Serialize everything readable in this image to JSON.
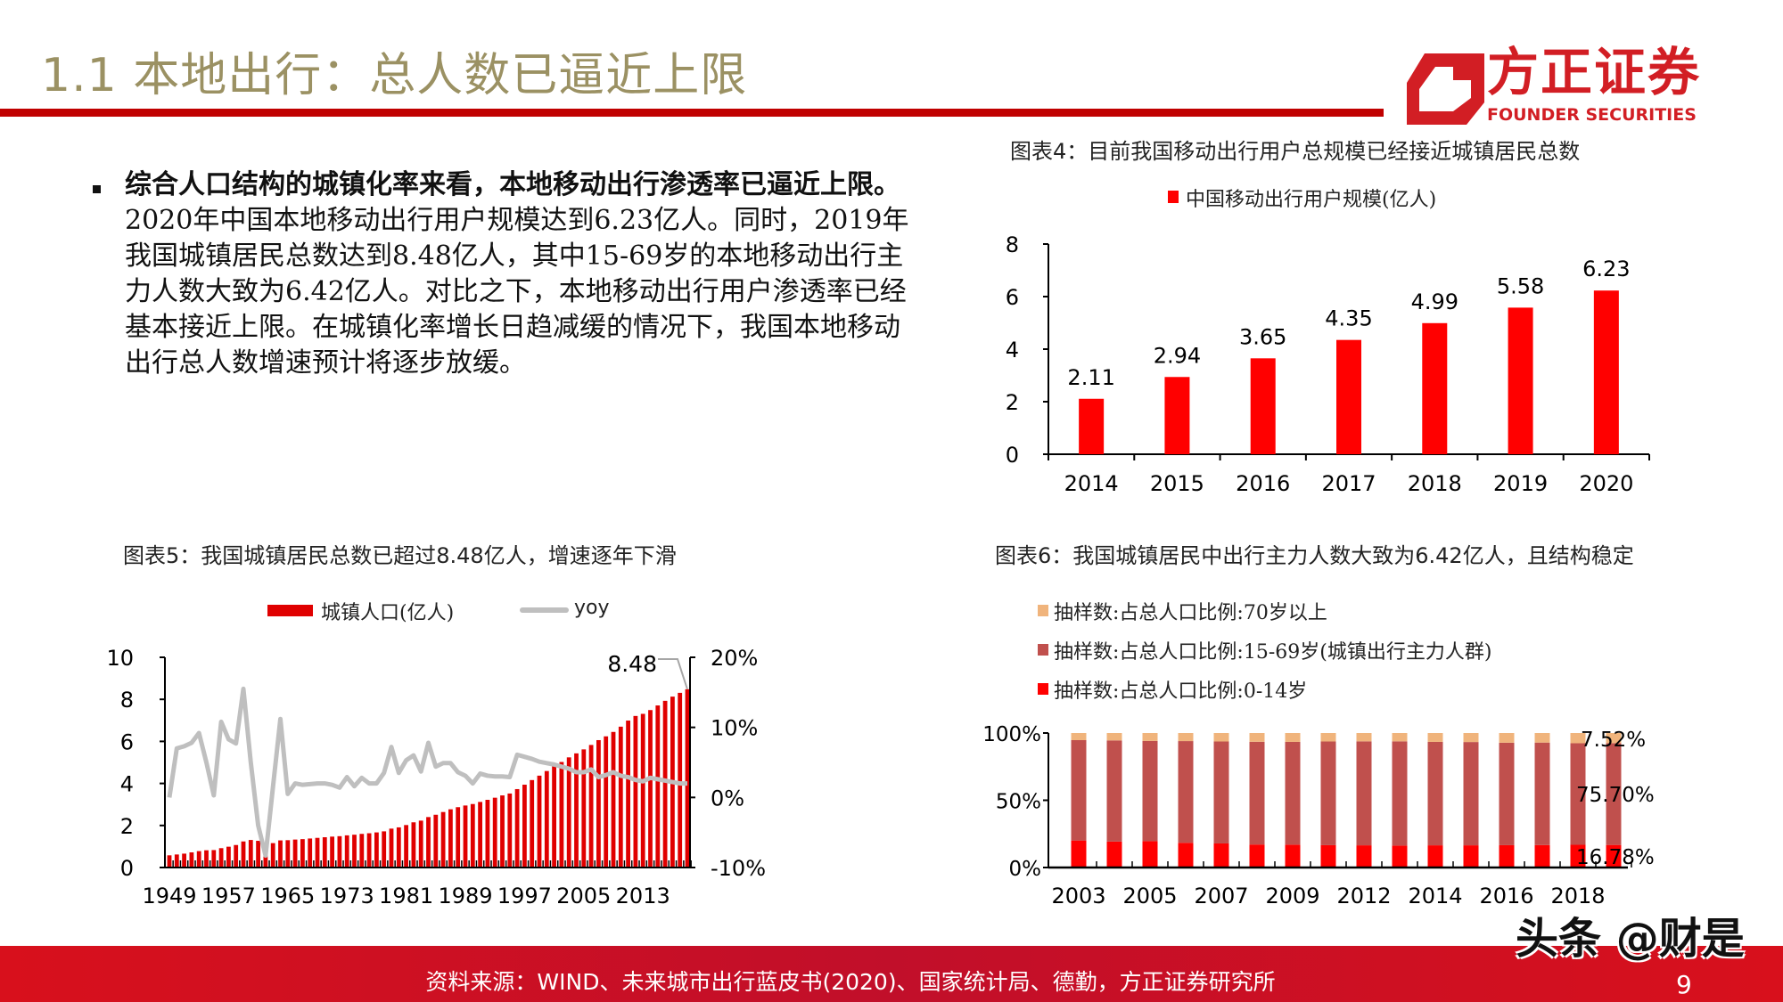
{
  "header": {
    "title": "1.1 本地出行：总人数已逼近上限",
    "logo_cn": "方正证券",
    "logo_en": "FOUNDER SECURITIES"
  },
  "bullet": {
    "bold": "综合人口结构的城镇化率来看，本地移动出行渗透率已逼近上限。",
    "text": "2020年中国本地移动出行用户规模达到6.23亿人。同时，2019年我国城镇居民总数达到8.48亿人，其中15-69岁的本地移动出行主力人数大致为6.42亿人。对比之下，本地移动出行用户渗透率已经基本接近上限。在城镇化率增长日趋减缓的情况下，我国本地移动出行总人数增速预计将逐步放缓。"
  },
  "colors": {
    "title": "#9b9163",
    "accent": "#c00000",
    "bar_red": "#ff0000",
    "yoy_gray": "#bfbfbf",
    "mid": "#c0504d",
    "old": "#f0b47c"
  },
  "chart_data": [
    {
      "type": "bar",
      "title": "图表4：目前我国移动出行用户总规模已经接近城镇居民总数",
      "series": [
        {
          "name": "中国移动出行用户规模(亿人)",
          "values": [
            2.11,
            2.94,
            3.65,
            4.35,
            4.99,
            5.58,
            6.23
          ]
        }
      ],
      "data_labels": [
        "2.11",
        "2.94",
        "3.65",
        "4.35",
        "4.99",
        "5.58",
        "6.23"
      ],
      "categories": [
        "2014",
        "2015",
        "2016",
        "2017",
        "2018",
        "2019",
        "2020"
      ],
      "ylim": [
        0,
        8
      ],
      "yticks": [
        "0",
        "2",
        "4",
        "6",
        "8"
      ],
      "legend": "top"
    },
    {
      "type": "bar+line",
      "title": "图表5：我国城镇居民总数已超过8.48亿人，增速逐年下滑",
      "years": [
        1949,
        1950,
        1951,
        1952,
        1953,
        1954,
        1955,
        1956,
        1957,
        1958,
        1959,
        1960,
        1961,
        1962,
        1963,
        1964,
        1965,
        1966,
        1967,
        1968,
        1969,
        1970,
        1971,
        1972,
        1973,
        1974,
        1975,
        1976,
        1977,
        1978,
        1979,
        1980,
        1981,
        1982,
        1983,
        1984,
        1985,
        1986,
        1987,
        1988,
        1989,
        1990,
        1991,
        1992,
        1993,
        1994,
        1995,
        1996,
        1997,
        1998,
        1999,
        2000,
        2001,
        2002,
        2003,
        2004,
        2005,
        2006,
        2007,
        2008,
        2009,
        2010,
        2011,
        2012,
        2013,
        2014,
        2015,
        2016,
        2017,
        2018,
        2019
      ],
      "series": [
        {
          "name": "城镇人口(亿人)",
          "axis": "left",
          "values": [
            0.58,
            0.62,
            0.66,
            0.72,
            0.78,
            0.82,
            0.83,
            0.92,
            0.99,
            1.07,
            1.24,
            1.31,
            1.27,
            1.17,
            1.16,
            1.29,
            1.3,
            1.33,
            1.35,
            1.38,
            1.41,
            1.44,
            1.47,
            1.49,
            1.53,
            1.56,
            1.6,
            1.63,
            1.67,
            1.72,
            1.85,
            1.91,
            2.02,
            2.15,
            2.23,
            2.4,
            2.51,
            2.64,
            2.77,
            2.87,
            2.95,
            3.02,
            3.12,
            3.22,
            3.32,
            3.43,
            3.52,
            3.73,
            3.94,
            4.16,
            4.37,
            4.59,
            4.81,
            5.02,
            5.24,
            5.43,
            5.62,
            5.83,
            6.06,
            6.24,
            6.45,
            6.7,
            6.99,
            7.21,
            7.31,
            7.49,
            7.71,
            7.93,
            8.13,
            8.31,
            8.48
          ]
        },
        {
          "name": "yoy",
          "axis": "right",
          "values": [
            0,
            7,
            7.3,
            7.8,
            9.2,
            5,
            0.3,
            10.8,
            8.3,
            7.7,
            15.5,
            5,
            -4,
            -8.3,
            1.5,
            11.2,
            0.5,
            2,
            1.8,
            1.9,
            2,
            2,
            1.8,
            1.4,
            2.9,
            1.6,
            2.8,
            2,
            2,
            3.5,
            7.2,
            3.5,
            5.3,
            6,
            3.7,
            7.8,
            4.4,
            4.9,
            4.9,
            3.6,
            3.1,
            2,
            3.4,
            3.1,
            3,
            3,
            2.9,
            6.1,
            5.8,
            5.5,
            5.1,
            4.9,
            4.7,
            4.4,
            4.1,
            3.6,
            3.6,
            4,
            2.9,
            3.2,
            3.6,
            3.1,
            2.9,
            2.5,
            2.3,
            2.8,
            2.6,
            2.4,
            2.2,
            2,
            2
          ]
        }
      ],
      "xtick_labels": [
        "1949",
        "1957",
        "1965",
        "1973",
        "1981",
        "1989",
        "1997",
        "2005",
        "2013"
      ],
      "ylim_left": [
        0,
        10
      ],
      "yticks_left": [
        "0",
        "2",
        "4",
        "6",
        "8",
        "10"
      ],
      "ylim_right": [
        -10,
        20
      ],
      "yticks_right": [
        "-10%",
        "0%",
        "10%",
        "20%"
      ],
      "annotation": "8.48",
      "legend": "top"
    },
    {
      "type": "stacked-bar",
      "title": "图表6：我国城镇居民中出行主力人数大致为6.42亿人，且结构稳定",
      "categories": [
        "2003",
        "2004",
        "2005",
        "2006",
        "2007",
        "2008",
        "2009",
        "2010",
        "2012",
        "2013",
        "2014",
        "2015",
        "2016",
        "2017",
        "2018",
        "2019"
      ],
      "xtick_labels": [
        "2003",
        "2005",
        "2007",
        "2009",
        "2012",
        "2014",
        "2016",
        "2018"
      ],
      "series": [
        {
          "name": "抽样数:占总人口比例:0-14岁",
          "values": [
            20.1,
            19.3,
            19.6,
            18.4,
            17.9,
            17.1,
            17.0,
            16.6,
            16.5,
            16.3,
            16.5,
            16.5,
            16.6,
            16.7,
            16.9,
            16.78
          ]
        },
        {
          "name": "抽样数:占总人口比例:15-69岁(城镇出行主力人群)",
          "values": [
            74.6,
            75.2,
            74.5,
            75.6,
            75.8,
            76.4,
            76.4,
            77.1,
            77.3,
            77.5,
            76.9,
            76.8,
            76.2,
            76.2,
            75.5,
            75.7
          ]
        },
        {
          "name": "抽样数:占总人口比例:70岁以上",
          "values": [
            5.3,
            5.5,
            5.9,
            6.0,
            6.3,
            6.5,
            6.6,
            6.3,
            6.2,
            6.2,
            6.6,
            6.7,
            7.2,
            7.1,
            7.6,
            7.52
          ]
        }
      ],
      "data_labels": [
        "16.78%",
        "75.70%",
        "7.52%"
      ],
      "yticks": [
        "0%",
        "50%",
        "100%"
      ],
      "ylim": [
        0,
        100
      ],
      "legend": "top"
    }
  ],
  "footer": {
    "source": "资料来源：WIND、未来城市出行蓝皮书(2020)、国家统计局、德勤，方正证券研究所",
    "page": "9",
    "watermark": "头条 @财是"
  }
}
